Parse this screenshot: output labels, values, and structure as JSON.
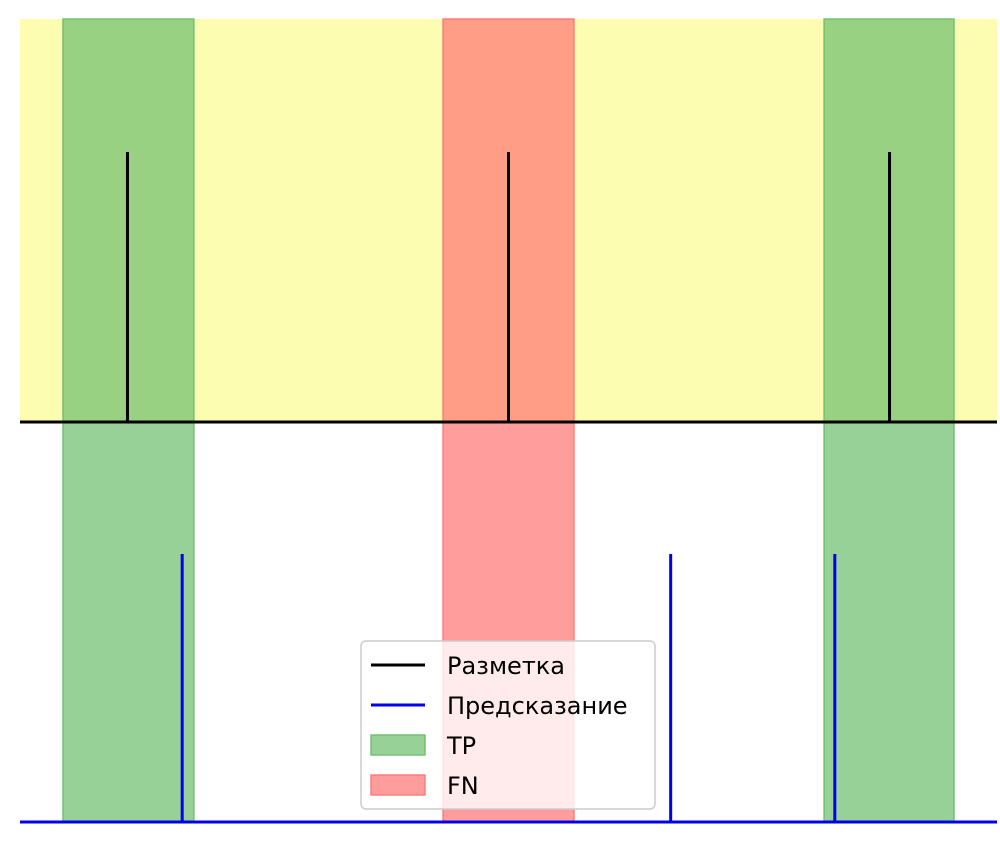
{
  "colors": {
    "top_panel_bg": "#fdfdb2",
    "tp": "#6cbd6c",
    "fn": "#ff7474",
    "markup_line": "#000000",
    "prediction_line": "#0000ee"
  },
  "chart_data": {
    "type": "event-timeline",
    "xlim": [
      0,
      1000
    ],
    "top_panel_ylim": [
      0,
      1
    ],
    "bottom_panel_ylim": [
      0,
      1
    ],
    "markup_events": [
      {
        "x": 110,
        "height": 0.67
      },
      {
        "x": 500,
        "height": 0.67
      },
      {
        "x": 890,
        "height": 0.67
      }
    ],
    "prediction_events": [
      {
        "x": 166,
        "height": 0.67
      },
      {
        "x": 666,
        "height": 0.67
      },
      {
        "x": 834,
        "height": 0.67
      }
    ],
    "windows": [
      {
        "start": 44,
        "end": 178,
        "class": "TP"
      },
      {
        "start": 433,
        "end": 567,
        "class": "FN"
      },
      {
        "start": 823,
        "end": 956,
        "class": "TP"
      }
    ],
    "legend": {
      "position": "lower-center",
      "entries": [
        {
          "label": "Разметка",
          "kind": "line",
          "color_key": "markup_line"
        },
        {
          "label": "Предсказание",
          "kind": "line",
          "color_key": "prediction_line"
        },
        {
          "label": "TP",
          "kind": "patch",
          "color_key": "tp"
        },
        {
          "label": "FN",
          "kind": "patch",
          "color_key": "fn"
        }
      ]
    }
  }
}
